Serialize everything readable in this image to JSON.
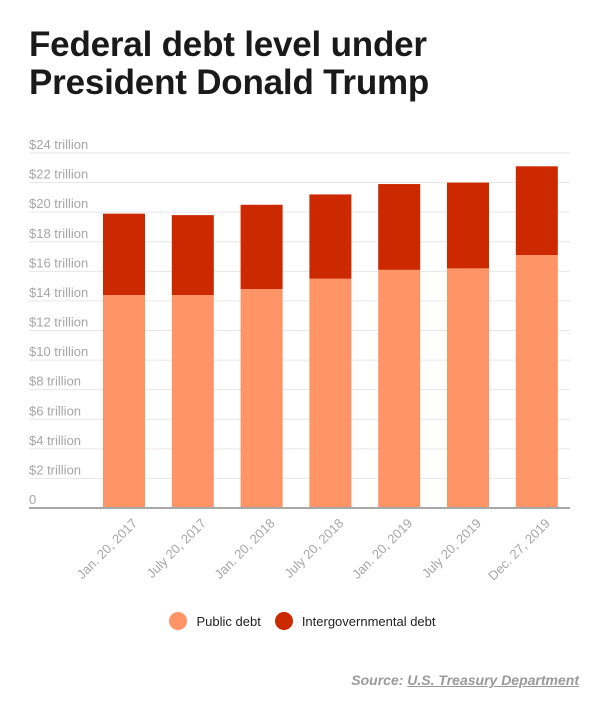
{
  "chart_data": {
    "type": "bar",
    "stacked": true,
    "title": "Federal debt level under President Donald Trump",
    "categories": [
      "Jan. 20, 2017",
      "July 20, 2017",
      "Jan. 20, 2018",
      "July 20, 2018",
      "Jan. 20, 2019",
      "July 20, 2019",
      "Dec. 27, 2019"
    ],
    "series": [
      {
        "name": "Public debt",
        "color": "#ff9466",
        "values": [
          14.4,
          14.4,
          14.8,
          15.5,
          16.1,
          16.2,
          17.1
        ]
      },
      {
        "name": "Intergovernmental debt",
        "color": "#cc2900",
        "values": [
          5.5,
          5.4,
          5.7,
          5.7,
          5.8,
          5.8,
          6.0
        ]
      }
    ],
    "ylim": [
      0,
      24
    ],
    "yticks": [
      0,
      2,
      4,
      6,
      8,
      10,
      12,
      14,
      16,
      18,
      20,
      22,
      24
    ],
    "ytick_labels": [
      "0",
      "$2 trillion",
      "$4 trillion",
      "$6 trillion",
      "$8 trillion",
      "$10 trillion",
      "$12 trillion",
      "$14 trillion",
      "$16 trillion",
      "$18 trillion",
      "$20 trillion",
      "$22 trillion",
      "$24 trillion"
    ],
    "grid": true,
    "legend_position": "bottom"
  },
  "source": {
    "label": "Source:",
    "link_text": "U.S. Treasury Department"
  }
}
